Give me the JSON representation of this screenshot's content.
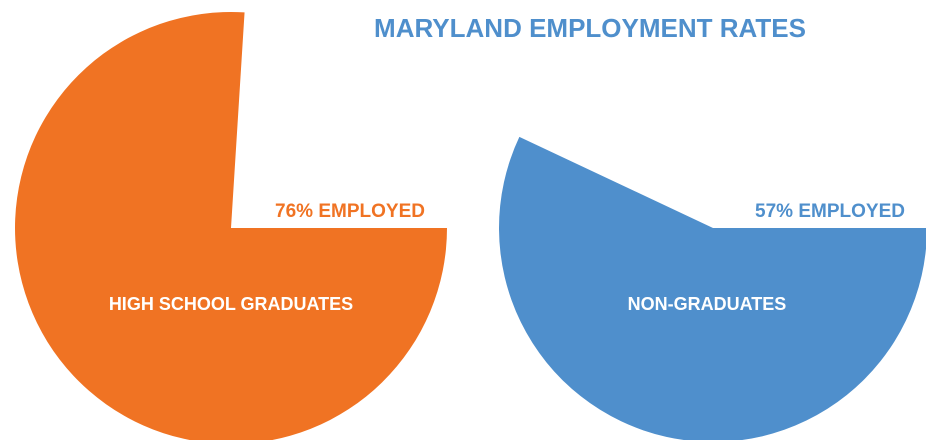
{
  "chart_data": {
    "type": "pie",
    "title": "MARYLAND EMPLOYMENT RATES",
    "categories": [
      "HIGH SCHOOL GRADUATES",
      "NON-GRADUATES"
    ],
    "values": [
      76,
      57
    ],
    "value_labels": [
      "76% EMPLOYED",
      "57% EMPLOYED"
    ],
    "colors": [
      "#f07323",
      "#4f8fcc"
    ]
  }
}
